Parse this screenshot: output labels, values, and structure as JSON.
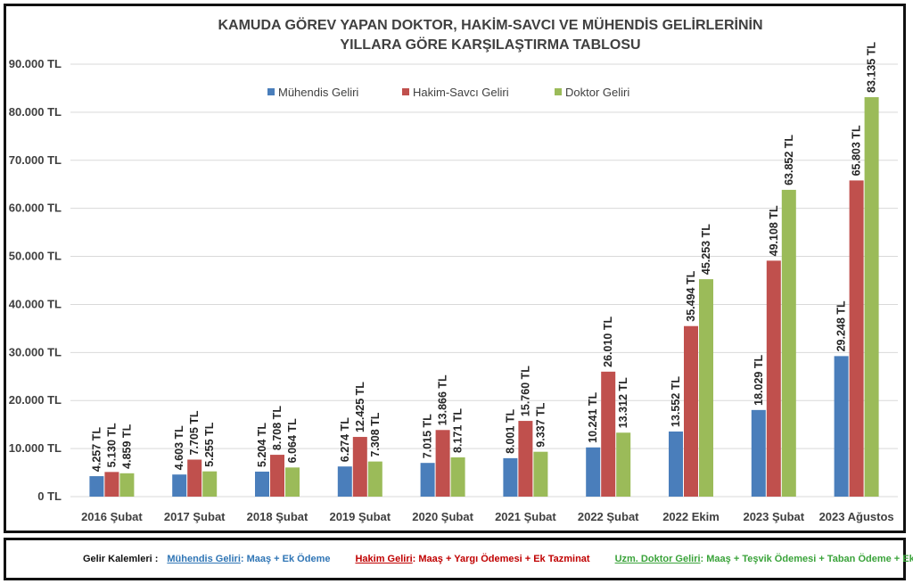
{
  "chart_data": {
    "type": "bar",
    "title_lines": [
      "KAMUDA GÖREV YAPAN DOKTOR, HAKİM-SAVCI VE MÜHENDİS GELİRLERİNİN",
      "YILLARA GÖRE KARŞILAŞTIRMA TABLOSU"
    ],
    "categories": [
      "2016 Şubat",
      "2017 Şubat",
      "2018 Şubat",
      "2019 Şubat",
      "2020 Şubat",
      "2021 Şubat",
      "2022 Şubat",
      "2022 Ekim",
      "2023 Şubat",
      "2023 Ağustos"
    ],
    "series": [
      {
        "name": "Mühendis Geliri",
        "color": "#4a7ebb",
        "values": [
          4257,
          4603,
          5204,
          6274,
          7015,
          8001,
          10241,
          13552,
          18029,
          29248
        ],
        "labels": [
          "4.257 TL",
          "4.603 TL",
          "5.204 TL",
          "6.274 TL",
          "7.015 TL",
          "8.001 TL",
          "10.241 TL",
          "13.552 TL",
          "18.029 TL",
          "29.248 TL"
        ]
      },
      {
        "name": "Hakim-Savcı Geliri",
        "color": "#c0504d",
        "values": [
          5130,
          7705,
          8708,
          12425,
          13866,
          15760,
          26010,
          35494,
          49108,
          65803
        ],
        "labels": [
          "5.130 TL",
          "7.705 TL",
          "8.708 TL",
          "12.425 TL",
          "13.866 TL",
          "15.760 TL",
          "26.010 TL",
          "35.494 TL",
          "49.108 TL",
          "65.803 TL"
        ]
      },
      {
        "name": "Doktor Geliri",
        "color": "#9bbb59",
        "values": [
          4859,
          5255,
          6064,
          7308,
          8171,
          9337,
          13312,
          45253,
          63852,
          83135
        ],
        "labels": [
          "4.859 TL",
          "5.255 TL",
          "6.064 TL",
          "7.308 TL",
          "8.171 TL",
          "9.337 TL",
          "13.312 TL",
          "45.253 TL",
          "63.852 TL",
          "83.135 TL"
        ]
      }
    ],
    "ylim": [
      0,
      90000
    ],
    "ytick_values": [
      0,
      10000,
      20000,
      30000,
      40000,
      50000,
      60000,
      70000,
      80000,
      90000
    ],
    "ytick_labels": [
      "0 TL",
      "10.000 TL",
      "20.000 TL",
      "30.000 TL",
      "40.000 TL",
      "50.000 TL",
      "60.000 TL",
      "70.000 TL",
      "80.000 TL",
      "90.000 TL"
    ],
    "grid": true,
    "legend_position": "top-center"
  },
  "footer": {
    "lead": "Gelir Kalemleri :",
    "items": [
      {
        "title": "Mühendis Geliri",
        "detail": ": Maaş + Ek Ödeme"
      },
      {
        "title": "Hakim Geliri",
        "detail": ": Maaş + Yargı Ödemesi + Ek Tazminat"
      },
      {
        "title": "Uzm. Doktor Geliri",
        "detail": ": Maaş + Teşvik Ödemesi + Taban Ödeme + Ek Ödeme"
      }
    ]
  }
}
